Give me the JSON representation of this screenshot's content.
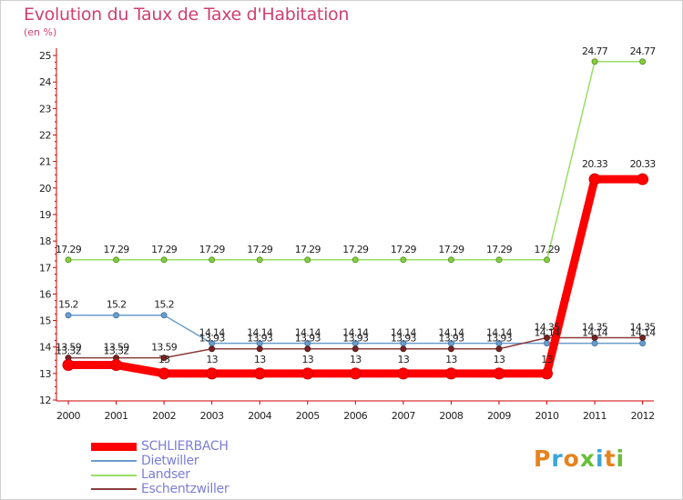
{
  "title": "Evolution du Taux de Taxe d'Habitation",
  "unit": "(en %)",
  "logo": {
    "text": "Proxiti",
    "colors": [
      "#e8821c",
      "#3aa6d8",
      "#e8821c",
      "#6abf3a",
      "#3aa6d8",
      "#e8821c",
      "#6abf3a"
    ]
  },
  "chart_data": {
    "type": "line",
    "title": "Evolution du Taux de Taxe d'Habitation",
    "ylabel": "(en %)",
    "xlabel": "",
    "x": [
      "2000",
      "2001",
      "2002",
      "2003",
      "2004",
      "2005",
      "2006",
      "2007",
      "2008",
      "2009",
      "2010",
      "2011",
      "2012"
    ],
    "ylim": [
      12,
      25
    ],
    "yticks": [
      "12",
      "13",
      "14",
      "15",
      "16",
      "17",
      "18",
      "19",
      "20",
      "21",
      "22",
      "23",
      "24",
      "25"
    ],
    "grid": false,
    "legend": "bottom-left",
    "series": [
      {
        "name": "SCHLIERBACH",
        "color": "#ff0000",
        "values": [
          13.32,
          13.32,
          13,
          13,
          13,
          13,
          13,
          13,
          13,
          13,
          13,
          20.33,
          20.33
        ],
        "labels": [
          "13.32",
          "13.32",
          "13",
          "13",
          "13",
          "13",
          "13",
          "13",
          "13",
          "13",
          "13",
          "20.33",
          "20.33"
        ]
      },
      {
        "name": "Dietwiller",
        "color": "#6a9ccc",
        "values": [
          15.2,
          15.2,
          15.2,
          14.14,
          14.14,
          14.14,
          14.14,
          14.14,
          14.14,
          14.14,
          14.14,
          14.14,
          14.14
        ],
        "labels": [
          "15.2",
          "15.2",
          "15.2",
          "14.14",
          "14.14",
          "14.14",
          "14.14",
          "14.14",
          "14.14",
          "14.14",
          "14.14",
          "14.14",
          "14.14"
        ]
      },
      {
        "name": "Landser",
        "color": "#99dd66",
        "values": [
          17.29,
          17.29,
          17.29,
          17.29,
          17.29,
          17.29,
          17.29,
          17.29,
          17.29,
          17.29,
          17.29,
          24.77,
          24.77
        ],
        "labels": [
          "17.29",
          "17.29",
          "17.29",
          "17.29",
          "17.29",
          "17.29",
          "17.29",
          "17.29",
          "17.29",
          "17.29",
          "17.29",
          "24.77",
          "24.77"
        ]
      },
      {
        "name": "Eschentzwiller",
        "color": "#8b3a3a",
        "values": [
          13.59,
          13.59,
          13.59,
          13.93,
          13.93,
          13.93,
          13.93,
          13.93,
          13.93,
          13.93,
          14.35,
          14.35,
          14.35
        ],
        "labels": [
          "13.59",
          "13.59",
          "13.59",
          "13.93",
          "13.93",
          "13.93",
          "13.93",
          "13.93",
          "13.93",
          "13.93",
          "14.35",
          "14.35",
          "14.35"
        ]
      }
    ]
  }
}
